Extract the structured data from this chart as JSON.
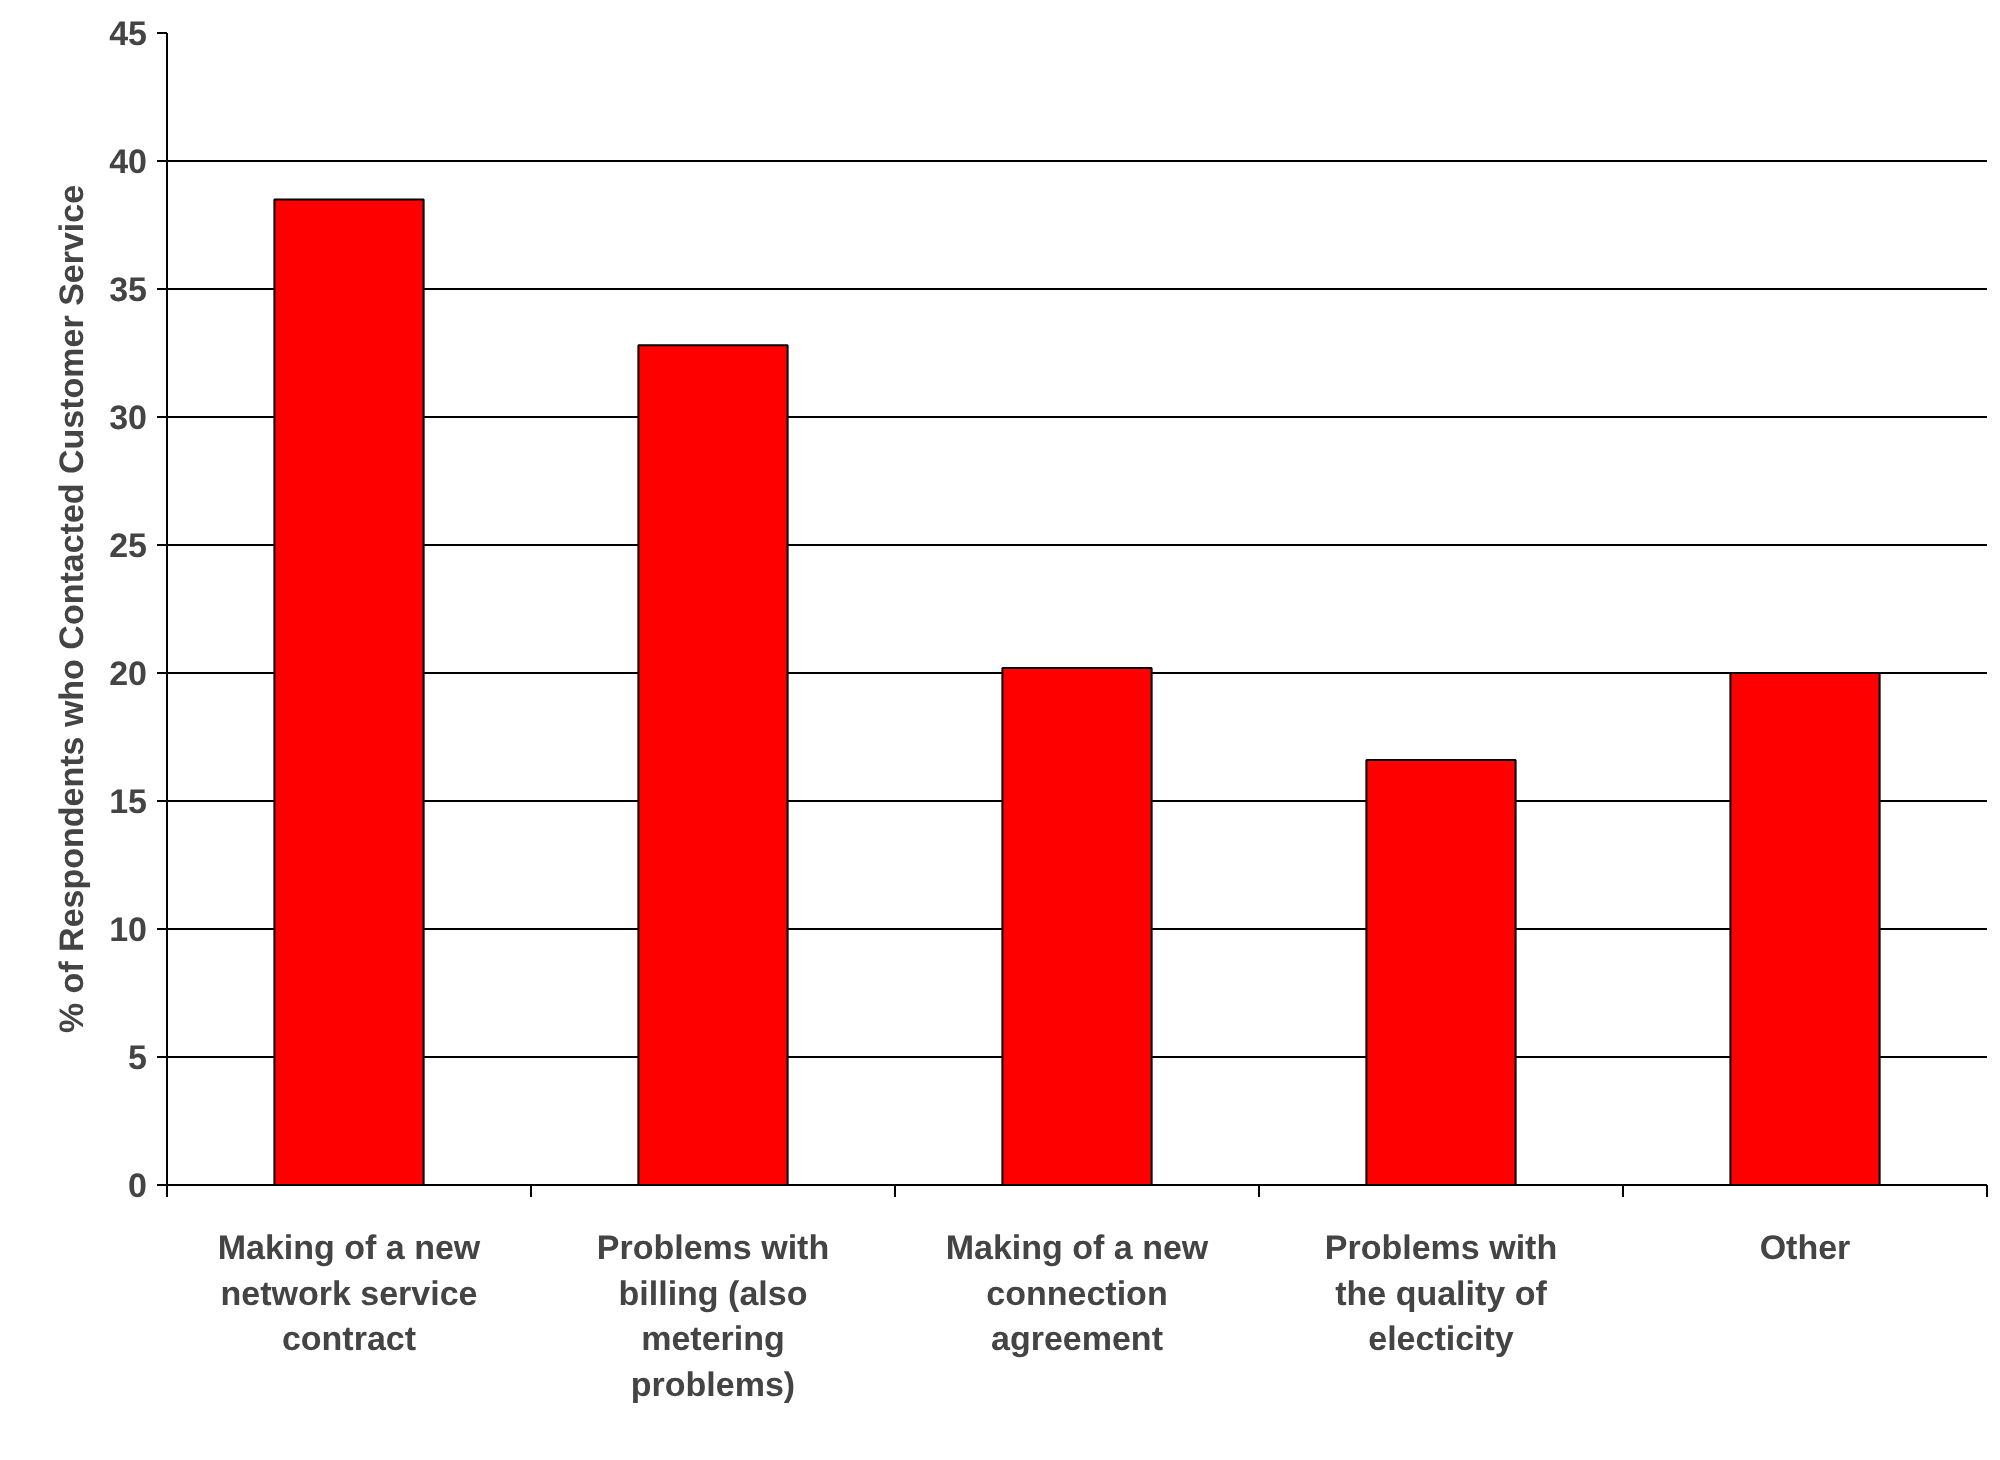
{
  "chart_data": {
    "type": "bar",
    "ylabel": "% of Respondents who Contacted Customer Service",
    "categories": [
      "Making of a new network service contract",
      "Problems with billing (also metering problems)",
      "Making of a new connection agreement",
      "Problems with the quality of electicity",
      "Other"
    ],
    "values": [
      38.5,
      32.8,
      20.2,
      16.6,
      20.0
    ],
    "color": "#ff0000",
    "ylim": [
      0,
      45
    ],
    "yticks": [
      0,
      5,
      10,
      15,
      20,
      25,
      30,
      35,
      40,
      45
    ],
    "grid": "y"
  }
}
